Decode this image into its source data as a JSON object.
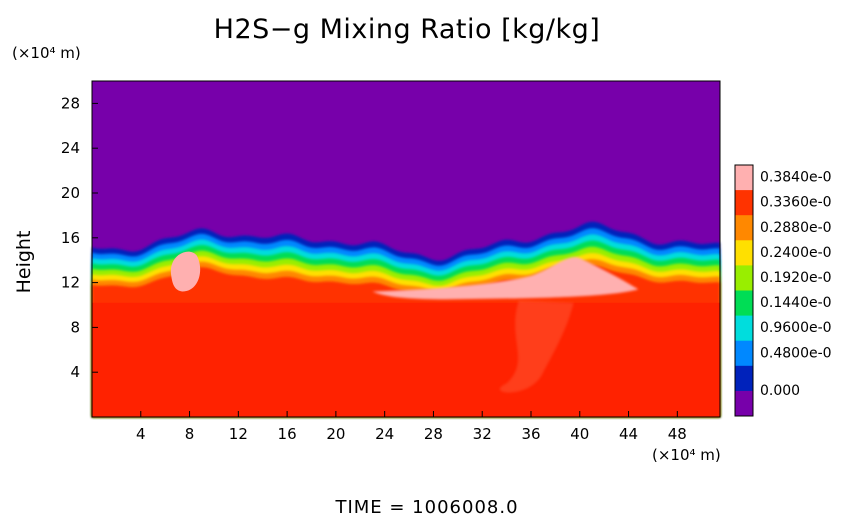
{
  "chart_data": {
    "type": "heatmap",
    "title": "H2S−g Mixing Ratio [kg/kg]",
    "ylabel": "Height",
    "y_unit_label": "(×10⁴ m)",
    "x_unit_label": "(×10⁴ m)",
    "time_label": "TIME = 1006008.0",
    "xlim": [
      0,
      51.5
    ],
    "ylim": [
      0,
      30
    ],
    "x_ticks": [
      4,
      8,
      12,
      16,
      20,
      24,
      28,
      32,
      36,
      40,
      44,
      48
    ],
    "y_ticks": [
      4,
      8,
      12,
      16,
      20,
      24,
      28
    ],
    "x_tick_labels": [
      "4",
      "8",
      "12",
      "16",
      "20",
      "24",
      "28",
      "32",
      "36",
      "40",
      "44",
      "48"
    ],
    "y_tick_labels": [
      "4",
      "8",
      "12",
      "16",
      "20",
      "24",
      "28"
    ],
    "colorbar_labels": [
      "0.3840e-0",
      "0.3360e-0",
      "0.2880e-0",
      "0.2400e-0",
      "0.1920e-0",
      "0.1440e-0",
      "0.9600e-0",
      "0.4800e-0",
      "0.000"
    ],
    "colorbar_colors": [
      "#ffb0b0",
      "#ff3300",
      "#ff8800",
      "#ffe000",
      "#99ee00",
      "#00dd55",
      "#00dddd",
      "#0088ff",
      "#0022bb",
      "#7700aa"
    ],
    "background_color": "#7700aa",
    "lower_field_color": "#ff2200",
    "interface_height": 12.5,
    "lower_field_top": 10.2
  }
}
